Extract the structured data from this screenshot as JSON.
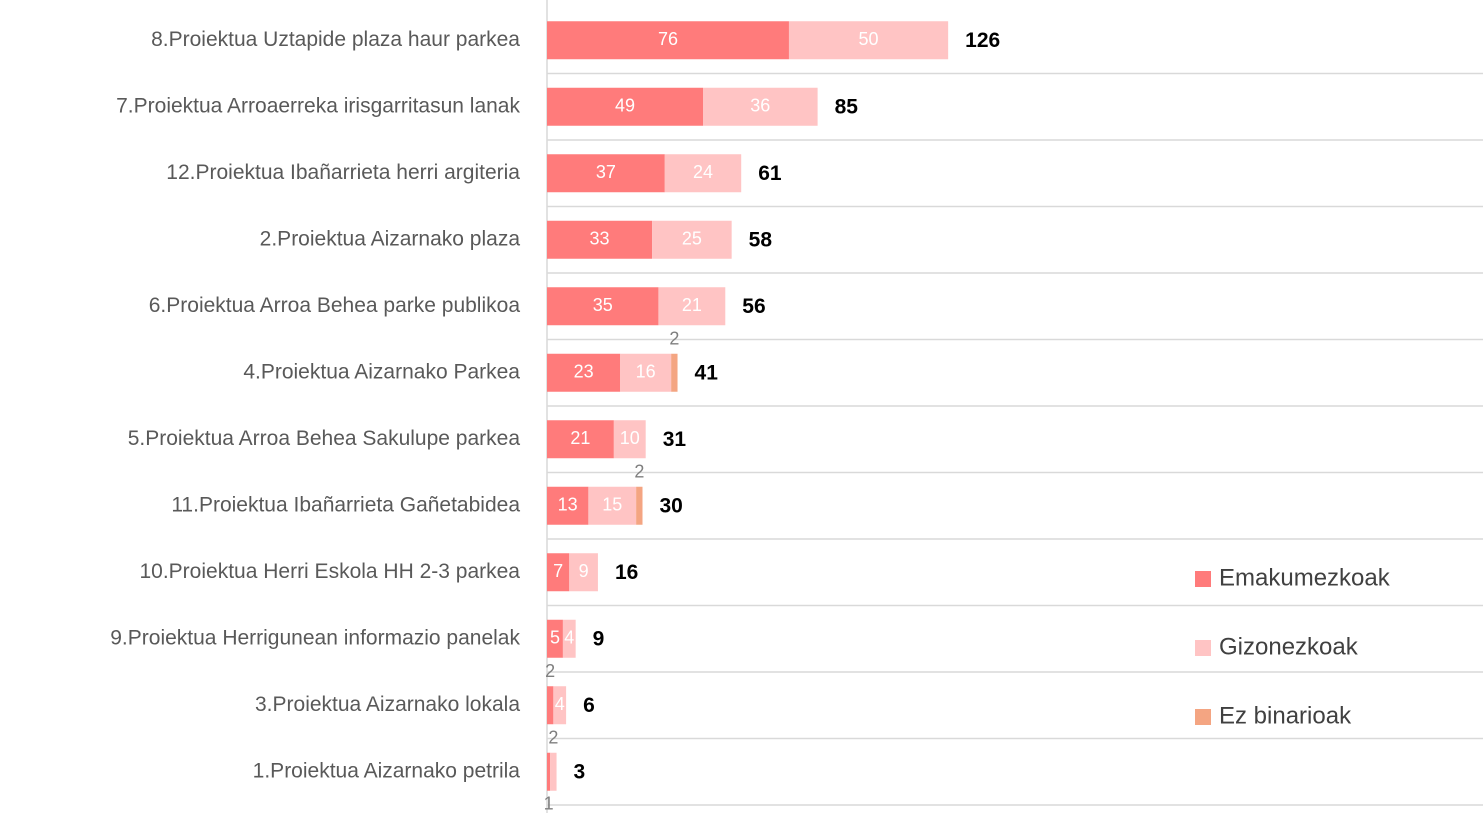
{
  "chart_data": {
    "type": "stacked-bar-horizontal",
    "categories": [
      "8.Proiektua Uztapide plaza haur parkea",
      "7.Proiektua Arroaerreka irisgarritasun lanak",
      "12.Proiektua Ibañarrieta herri argiteria",
      "2.Proiektua Aizarnako plaza",
      "6.Proiektua Arroa Behea parke publikoa",
      "4.Proiektua Aizarnako Parkea",
      "5.Proiektua Arroa Behea Sakulupe parkea",
      "11.Proiektua Ibañarrieta Gañetabidea",
      "10.Proiektua Herri Eskola HH 2-3 parkea",
      "9.Proiektua Herrigunean informazio panelak",
      "3.Proiektua Aizarnako lokala",
      "1.Proiektua Aizarnako petrila"
    ],
    "series": [
      {
        "name": "Emakumezkoak",
        "color": "#ff7b7b",
        "values": [
          76,
          49,
          37,
          33,
          35,
          23,
          21,
          13,
          7,
          5,
          2,
          1
        ]
      },
      {
        "name": "Gizonezkoak",
        "color": "#ffc4c4",
        "values": [
          50,
          36,
          24,
          25,
          21,
          16,
          10,
          15,
          9,
          4,
          4,
          2
        ]
      },
      {
        "name": "Ez binarioak",
        "color": "#f4a582",
        "values": [
          null,
          null,
          null,
          null,
          null,
          2,
          null,
          2,
          null,
          null,
          null,
          null
        ]
      }
    ],
    "totals": [
      126,
      85,
      61,
      58,
      56,
      41,
      31,
      30,
      16,
      9,
      6,
      3
    ],
    "xlim": [
      0,
      294
    ]
  }
}
